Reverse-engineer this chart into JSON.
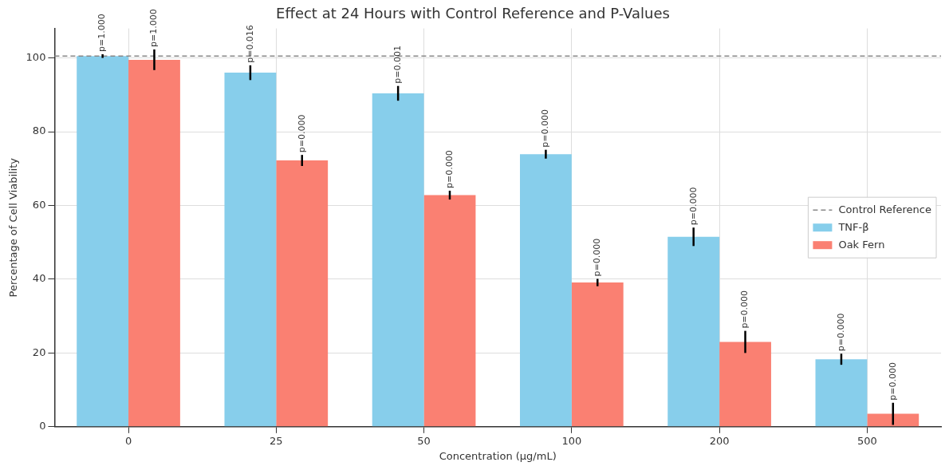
{
  "chart_data": {
    "type": "bar",
    "title": "Effect at 24 Hours with Control Reference and P-Values",
    "xlabel": "Concentration (µg/mL)",
    "ylabel": "Percentage of Cell Viability",
    "categories": [
      "0",
      "25",
      "50",
      "100",
      "200",
      "500"
    ],
    "series": [
      {
        "name": "TNF-β",
        "color": "#87ceeb",
        "values": [
          100.5,
          96,
          90.4,
          73.9,
          51.5,
          18.3
        ],
        "errors": [
          0.5,
          2,
          2,
          1.2,
          2.5,
          1.5
        ]
      },
      {
        "name": "Oak Fern",
        "color": "#fa8072",
        "values": [
          99.5,
          72.2,
          62.8,
          39.1,
          23,
          3.5
        ],
        "errors": [
          2.8,
          1.5,
          1.2,
          1,
          3,
          3
        ]
      }
    ],
    "annotations": [
      {
        "text": "p=1.000",
        "x": "0",
        "y": 100.5
      },
      {
        "text": "p=1.000",
        "x": "0",
        "y": 99.5
      },
      {
        "text": "p=0.016",
        "x": "25",
        "y": 96
      },
      {
        "text": "p=0.000",
        "x": "25",
        "y": 72.2
      },
      {
        "text": "p=0.001",
        "x": "50",
        "y": 90.4
      },
      {
        "text": "p=0.000",
        "x": "50",
        "y": 62.8
      },
      {
        "text": "p=0.000",
        "x": "100",
        "y": 73.9
      },
      {
        "text": "p=0.000",
        "x": "100",
        "y": 39.1
      },
      {
        "text": "p=0.000",
        "x": "200",
        "y": 51.5
      },
      {
        "text": "p=0.000",
        "x": "200",
        "y": 23
      },
      {
        "text": "p=0.000",
        "x": "500",
        "y": 18.3
      },
      {
        "text": "p=0.000",
        "x": "500",
        "y": 3.5
      }
    ],
    "ref_lines": [
      {
        "axis": "y",
        "value": 100.5,
        "label": "Control Reference",
        "color": "#888888",
        "line_style": "dashed"
      }
    ],
    "ylim": [
      0,
      108
    ],
    "yticks": [
      0,
      20,
      40,
      60,
      80,
      100
    ],
    "grid": true,
    "legend": "center right"
  }
}
